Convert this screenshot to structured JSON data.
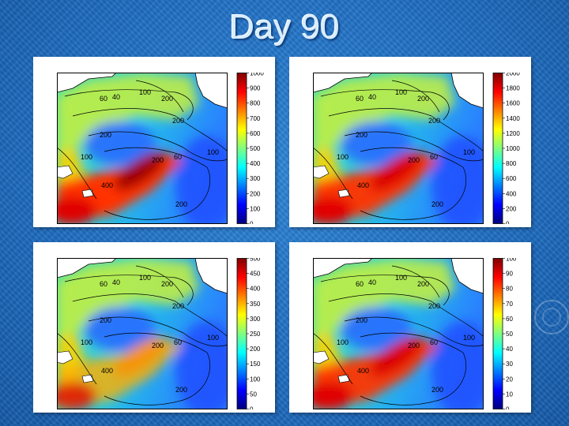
{
  "slide": {
    "title": "Day 90"
  },
  "contour_labels": [
    "60",
    "40",
    "100",
    "200",
    "200",
    "200",
    "100",
    "60",
    "200",
    "400",
    "100",
    "200"
  ],
  "panels": [
    {
      "name": "panel-top-left",
      "ticks": [
        "1000",
        "900",
        "800",
        "700",
        "600",
        "500",
        "400",
        "300",
        "200",
        "100",
        "0"
      ],
      "hot_intensity": 1.0
    },
    {
      "name": "panel-top-right",
      "ticks": [
        "2000",
        "1800",
        "1600",
        "1400",
        "1200",
        "1000",
        "800",
        "600",
        "400",
        "200",
        "0"
      ],
      "hot_intensity": 0.9
    },
    {
      "name": "panel-bottom-left",
      "ticks": [
        "500",
        "450",
        "400",
        "350",
        "300",
        "250",
        "200",
        "150",
        "100",
        "50",
        "0"
      ],
      "hot_intensity": 0.55
    },
    {
      "name": "panel-bottom-right",
      "ticks": [
        "100",
        "90",
        "80",
        "70",
        "60",
        "50",
        "40",
        "30",
        "20",
        "10",
        "0"
      ],
      "hot_intensity": 0.85
    }
  ]
}
